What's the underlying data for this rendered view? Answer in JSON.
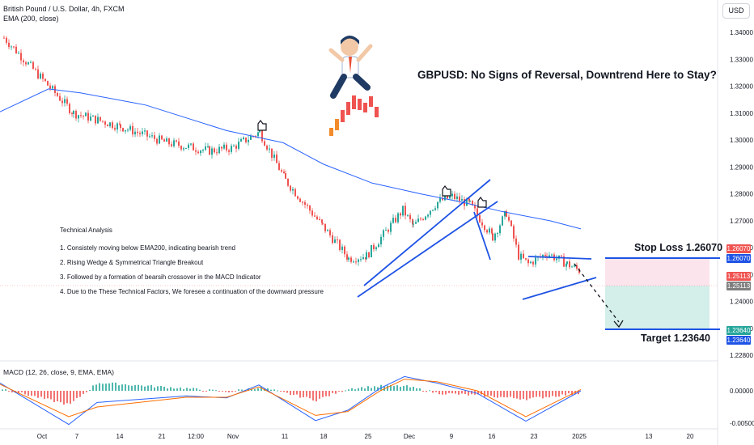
{
  "header": {
    "symbol_line": "British Pound / U.S. Dollar, 4h, FXCM",
    "indicator_line": "EMA (200, close)",
    "currency_button": "USD"
  },
  "headline": "GBPUSD: No Signs of Reversal, Downtrend Here to Stay?",
  "technical_analysis": {
    "title": "Technical Analysis",
    "points": [
      "1. Consistely moving below EMA200, indicating bearish trend",
      "2. Rising Wedge & Symmetrical Triangle Breakout",
      "3. Followed by a formation of bearsih crossover in the MACD Indicator",
      "4. Due to the These Technical Factors, We foresee a continuation of the downward pressure"
    ]
  },
  "levels": {
    "stop_loss_label": "Stop Loss 1.26070",
    "target_label": "Target 1.23640",
    "stop_loss_price": "1.26070",
    "current_price": "1.25113",
    "target_price": "1.23640"
  },
  "macd_label": "MACD (12, 26, close, 9, EMA, EMA)",
  "colors": {
    "up": "#26a69a",
    "down": "#ef5350",
    "ema": "#2962ff",
    "macd_line": "#2962ff",
    "signal_line": "#ff6d00",
    "pattern_lines": "#1e53e5",
    "stop_zone": "#fce4ec",
    "target_zone": "#d4eee9"
  },
  "chart_data": [
    {
      "type": "candlestick",
      "title": "British Pound / U.S. Dollar, 4h, FXCM",
      "x_ticks": [
        "Oct",
        "7",
        "14",
        "21",
        "12:00",
        "Nov",
        "11",
        "18",
        "25",
        "Dec",
        "9",
        "16",
        "23",
        "2025",
        "13",
        "20"
      ],
      "y_ticks": [
        "1.34000",
        "1.33000",
        "1.32000",
        "1.31000",
        "1.30000",
        "1.29000",
        "1.28000",
        "1.27000",
        "1.26000",
        "1.25000",
        "1.24000",
        "1.23000",
        "1.22800"
      ],
      "ylim": [
        1.228,
        1.3445
      ],
      "grid": false,
      "series": [
        {
          "name": "GBPUSD",
          "x": [
            "Oct 1",
            "Oct 7",
            "Oct 14",
            "Oct 21",
            "Oct 25",
            "Nov 1",
            "Nov 6",
            "Nov 11",
            "Nov 18",
            "Nov 22",
            "Nov 25",
            "Nov 29",
            "Dec 2",
            "Dec 6",
            "Dec 9",
            "Dec 12",
            "Dec 16",
            "Dec 18",
            "Dec 20",
            "Dec 23",
            "Dec 26",
            "Dec 30",
            "Jan 1"
          ],
          "close": [
            1.338,
            1.31,
            1.305,
            1.299,
            1.296,
            1.297,
            1.303,
            1.285,
            1.268,
            1.256,
            1.257,
            1.274,
            1.268,
            1.277,
            1.279,
            1.276,
            1.264,
            1.273,
            1.257,
            1.254,
            1.258,
            1.254,
            1.2511
          ]
        },
        {
          "name": "EMA (200, close)",
          "x": [
            "Oct 1",
            "Oct 7",
            "Oct 14",
            "Oct 21",
            "Nov 1",
            "Nov 11",
            "Nov 18",
            "Nov 25",
            "Dec 2",
            "Dec 9",
            "Dec 16",
            "Dec 23",
            "Jan 1"
          ],
          "values": [
            1.3105,
            1.319,
            1.3175,
            1.313,
            1.3035,
            1.299,
            1.291,
            1.284,
            1.28,
            1.277,
            1.2735,
            1.27,
            1.267
          ]
        }
      ],
      "annotations": [
        "Stop Loss 1.26070",
        "Target 1.23640",
        "Rising Wedge",
        "Symmetrical Triangle"
      ],
      "stop_loss": 1.2607,
      "target": 1.2364,
      "current": 1.25113
    },
    {
      "type": "line",
      "title": "MACD (12, 26, close, 9, EMA, EMA)",
      "y_ticks": [
        "0.00000",
        "-0.00500"
      ],
      "ylim": [
        -0.0062,
        0.0035
      ],
      "series": [
        {
          "name": "MACD",
          "values": [
            0.0012,
            -0.0052,
            -0.0018,
            -0.0008,
            -0.0011,
            0.0009,
            -0.0046,
            -0.003,
            0.0004,
            0.0022,
            0.0012,
            -0.0004,
            -0.0047,
            0.0
          ]
        },
        {
          "name": "Signal",
          "values": [
            0.001,
            -0.004,
            -0.0025,
            -0.001,
            -0.001,
            0.0006,
            -0.0038,
            -0.0032,
            0.0,
            0.0018,
            0.0014,
            0.0,
            -0.004,
            0.0002
          ]
        }
      ]
    }
  ]
}
